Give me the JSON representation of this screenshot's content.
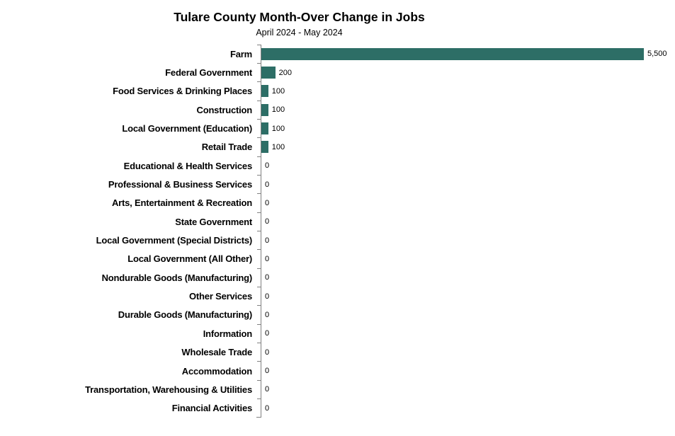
{
  "chart_data": {
    "type": "bar",
    "orientation": "horizontal",
    "title": "Tulare County Month-Over Change in Jobs",
    "subtitle": "April 2024 - May 2024",
    "xlabel": "",
    "ylabel": "",
    "xlim": [
      0,
      5500
    ],
    "grid": false,
    "legend": "none",
    "bar_color": "#2d6e66",
    "axis_color": "#808080",
    "categories": [
      "Farm",
      "Federal Government",
      "Food Services & Drinking Places",
      "Construction",
      "Local Government (Education)",
      "Retail Trade",
      "Educational & Health Services",
      "Professional & Business Services",
      "Arts, Entertainment & Recreation",
      "State Government",
      "Local Government (Special Districts)",
      "Local Government (All Other)",
      "Nondurable Goods (Manufacturing)",
      "Other Services",
      "Durable Goods (Manufacturing)",
      "Information",
      "Wholesale Trade",
      "Accommodation",
      "Transportation, Warehousing & Utilities",
      "Financial Activities"
    ],
    "values": [
      5500,
      200,
      100,
      100,
      100,
      100,
      0,
      0,
      0,
      0,
      0,
      0,
      0,
      0,
      0,
      0,
      0,
      0,
      0,
      0
    ],
    "value_labels": [
      "5,500",
      "200",
      "100",
      "100",
      "100",
      "100",
      "0",
      "0",
      "0",
      "0",
      "0",
      "0",
      "0",
      "0",
      "0",
      "0",
      "0",
      "0",
      "0",
      "0"
    ]
  }
}
